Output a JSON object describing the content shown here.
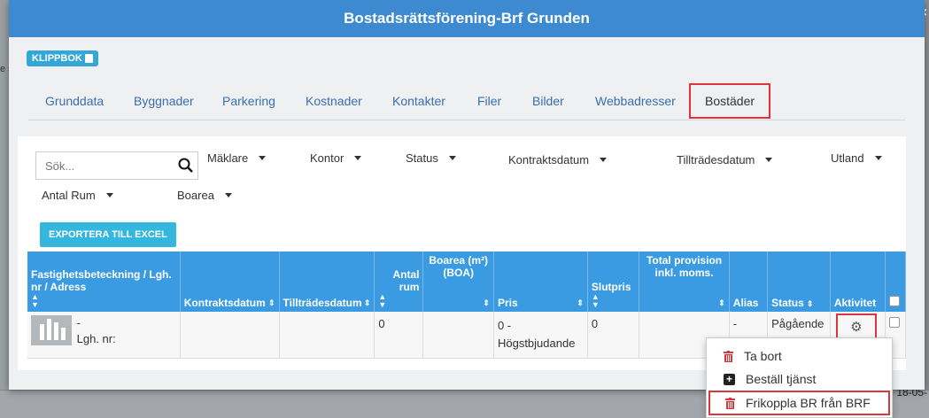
{
  "background": {
    "left_text": "e s",
    "bottom_right_text": "18-05-"
  },
  "modal": {
    "title": "Bostadsrättsförening-Brf Grunden",
    "close_label": "×",
    "klippbok_label": "KLIPPBOK"
  },
  "tabs": [
    "Grunddata",
    "Byggnader",
    "Parkering",
    "Kostnader",
    "Kontakter",
    "Filer",
    "Bilder",
    "Webbadresser",
    "Bostäder"
  ],
  "active_tab": "Bostäder",
  "search": {
    "placeholder": "Sök..."
  },
  "filters": {
    "maklare": "Mäklare",
    "kontor": "Kontor",
    "status": "Status",
    "kontraktsdatum": "Kontraktsdatum",
    "tilltradesdatum": "Tillträdesdatum",
    "utland": "Utland",
    "antal_rum": "Antal Rum",
    "boarea": "Boarea"
  },
  "export_label": "EXPORTERA TILL EXCEL",
  "table": {
    "headers": {
      "fastighet": "Fastighetsbeteckning / Lgh. nr / Adress",
      "kontraktsdatum": "Kontraktsdatum",
      "tilltradesdatum": "Tillträdesdatum",
      "antal_rum": "Antal rum",
      "boarea": "Boarea (m²) (BOA)",
      "pris": "Pris",
      "slutpris": "Slutpris",
      "provision": "Total provision inkl. moms.",
      "alias": "Alias",
      "status": "Status",
      "aktivitet": "Aktivitet"
    },
    "row": {
      "fastighet_line1": "-",
      "fastighet_line2": "Lgh. nr:",
      "kontraktsdatum": "",
      "tilltradesdatum": "",
      "antal_rum": "0",
      "boarea": "",
      "pris_line1": "0 -",
      "pris_line2": "Högstbjudande",
      "slutpris": "0",
      "provision": "",
      "alias": "-",
      "status": "Pågående"
    }
  },
  "dropdown": {
    "items": [
      "Ta bort",
      "Beställ tjänst",
      "Frikoppla BR från BRF"
    ]
  }
}
